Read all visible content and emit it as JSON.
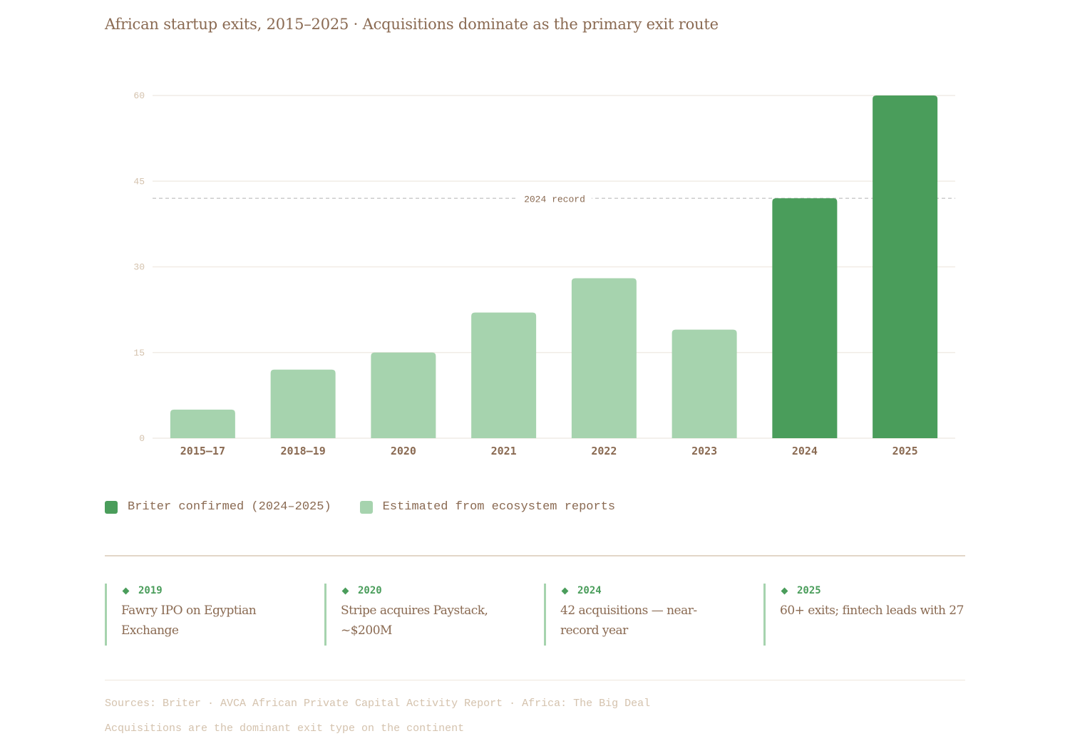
{
  "title": "African startup exits, 2015–2025 · Acquisitions dominate as the primary exit route",
  "chart_data": {
    "type": "bar",
    "title": "African startup exits, 2015–2025 · Acquisitions dominate as the primary exit route",
    "categories": [
      "2015–17",
      "2018–19",
      "2020",
      "2021",
      "2022",
      "2023",
      "2024",
      "2025"
    ],
    "values": [
      5,
      12,
      15,
      22,
      28,
      19,
      42,
      60
    ],
    "series_type": [
      "estimated",
      "estimated",
      "estimated",
      "estimated",
      "estimated",
      "estimated",
      "confirmed",
      "confirmed"
    ],
    "xlabel": "",
    "ylabel": "",
    "ylim": [
      0,
      60
    ],
    "yticks": [
      0,
      15,
      30,
      45,
      60
    ],
    "grid": true,
    "reference_line": {
      "value": 42,
      "label": "2024 record"
    },
    "legend": {
      "position": "bottom-left",
      "items": [
        {
          "key": "confirmed",
          "label": "Briter confirmed (2024–2025)",
          "color": "#4a9d5b"
        },
        {
          "key": "estimated",
          "label": "Estimated from ecosystem reports",
          "color": "#a6d3ae"
        }
      ]
    }
  },
  "milestones": [
    {
      "year": "2019",
      "text": "Fawry IPO on Egyptian Exchange"
    },
    {
      "year": "2020",
      "text": "Stripe acquires Paystack, ~$200M"
    },
    {
      "year": "2024",
      "text": "42 acquisitions — near-record year"
    },
    {
      "year": "2025",
      "text": "60+ exits; fintech leads with 27"
    }
  ],
  "footer": {
    "sources": "Sources: Briter · AVCA African Private Capital Activity Report · Africa: The Big Deal",
    "note": "Acquisitions are the dominant exit type on the continent"
  },
  "colors": {
    "confirmed": "#4a9d5b",
    "estimated": "#a6d3ae",
    "text": "#8a6a52",
    "muted": "#d4c2ad"
  }
}
